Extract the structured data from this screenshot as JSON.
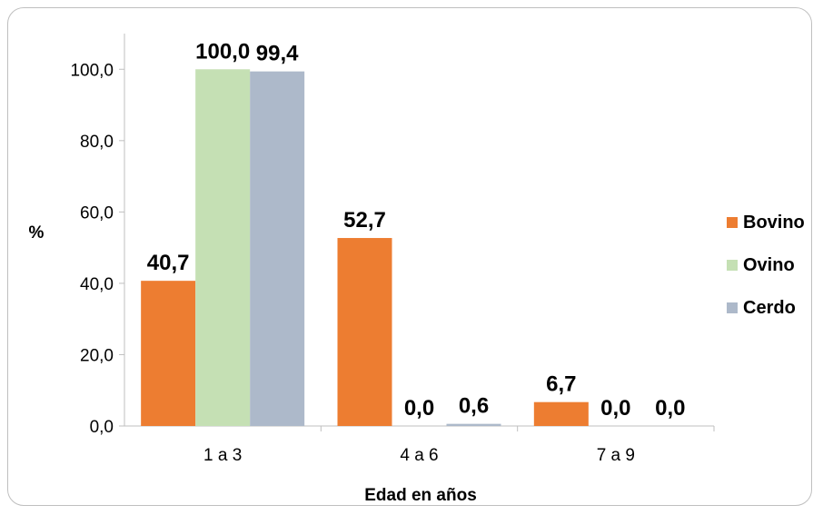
{
  "chart_data": {
    "type": "bar",
    "title": "",
    "xlabel": "Edad en años",
    "ylabel": "%",
    "categories": [
      "1 a 3",
      "4 a 6",
      "7 a 9"
    ],
    "series": [
      {
        "name": "Bovino",
        "values": [
          40.7,
          52.7,
          6.7
        ],
        "labels": [
          "40,7",
          "52,7",
          "6,7"
        ],
        "color": "#ED7D31"
      },
      {
        "name": "Ovino",
        "values": [
          100.0,
          0.0,
          0.0
        ],
        "labels": [
          "100,0",
          "0,0",
          "0,0"
        ],
        "color": "#C5E0B4"
      },
      {
        "name": "Cerdo",
        "values": [
          99.4,
          0.6,
          0.0
        ],
        "labels": [
          "99,4",
          "0,6",
          "0,0"
        ],
        "color": "#ADB9CA"
      }
    ],
    "ylim": [
      0,
      110
    ],
    "yticks": [
      "0,0",
      "20,0",
      "40,0",
      "60,0",
      "80,0",
      "100,0"
    ],
    "ytick_values": [
      0,
      20,
      40,
      60,
      80,
      100
    ],
    "grid": false,
    "legend_position": "right"
  }
}
